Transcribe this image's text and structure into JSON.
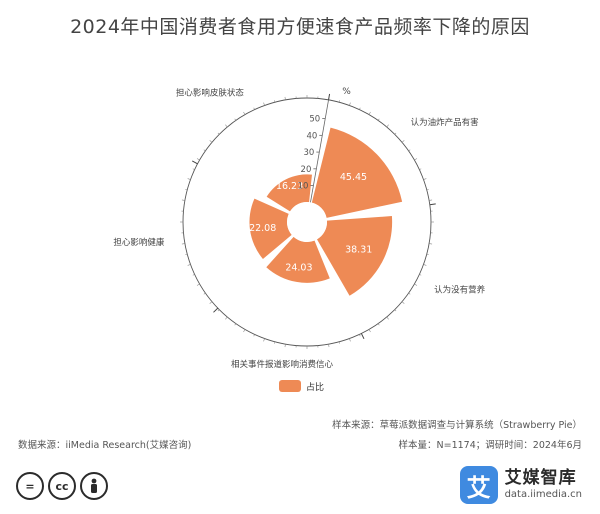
{
  "chart_data": {
    "type": "polar-bar",
    "title": "2024年中国消费者食用方便速食产品频率下降的原因",
    "unit": "%",
    "radial_ticks": [
      10,
      20,
      30,
      40,
      50
    ],
    "radial_max": 50,
    "categories": [
      "认为油炸产品有害",
      "认为没有营养",
      "相关事件报道影响消费信心",
      "担心影响健康",
      "担心影响皮肤状态"
    ],
    "series": [
      {
        "name": "占比",
        "color": "#ee8a55",
        "values": [
          45.45,
          38.31,
          24.03,
          22.08,
          16.23
        ]
      }
    ]
  },
  "sources": {
    "sample_source": "样本来源：草莓派数据调查与计算系统（Strawberry Pie）",
    "sample_size": "样本量：N=1174；调研时间：2024年6月",
    "data_source": "数据来源：iiMedia Research(艾媒咨询)"
  },
  "footer": {
    "license_icons": [
      "equals-icon",
      "cc-icon",
      "person-icon"
    ],
    "brand_logo_char": "艾",
    "brand_name": "艾媒智库",
    "brand_url": "data.iimedia.cn"
  }
}
